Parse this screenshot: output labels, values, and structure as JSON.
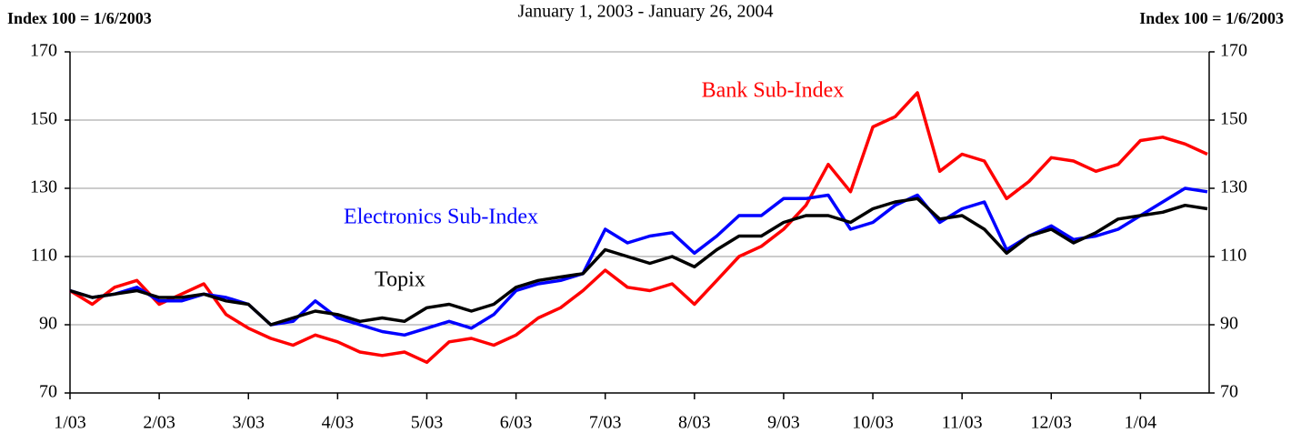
{
  "chart_data": {
    "type": "line",
    "title": "January 1, 2003 - January 26, 2004",
    "y_label": "Index 100 = 1/6/2003",
    "y2_label": "Index 100 = 1/6/2003",
    "categories": [
      "1/03",
      null,
      null,
      null,
      "2/03",
      null,
      null,
      null,
      "3/03",
      null,
      null,
      null,
      "4/03",
      null,
      null,
      null,
      "5/03",
      null,
      null,
      null,
      "6/03",
      null,
      null,
      null,
      "7/03",
      null,
      null,
      null,
      "8/03",
      null,
      null,
      null,
      "9/03",
      null,
      null,
      null,
      "10/03",
      null,
      null,
      null,
      "11/03",
      null,
      null,
      null,
      "12/03",
      null,
      null,
      null,
      "1/04",
      null,
      null,
      null
    ],
    "series": [
      {
        "name": "Bank Sub-Index",
        "color": "#ff0000",
        "values": [
          100,
          96,
          101,
          103,
          96,
          99,
          102,
          93,
          89,
          86,
          84,
          87,
          85,
          82,
          81,
          82,
          79,
          85,
          86,
          84,
          87,
          92,
          95,
          100,
          106,
          101,
          100,
          102,
          96,
          103,
          110,
          113,
          118,
          125,
          137,
          129,
          148,
          151,
          158,
          135,
          140,
          138,
          127,
          132,
          139,
          138,
          135,
          137,
          144,
          145,
          143,
          140
        ]
      },
      {
        "name": "Electronics Sub-Index",
        "color": "#0000ff",
        "values": [
          100,
          98,
          99,
          101,
          97,
          97,
          99,
          98,
          96,
          90,
          91,
          97,
          92,
          90,
          88,
          87,
          89,
          91,
          89,
          93,
          100,
          102,
          103,
          105,
          118,
          114,
          116,
          117,
          111,
          116,
          122,
          122,
          127,
          127,
          128,
          118,
          120,
          125,
          128,
          120,
          124,
          126,
          112,
          116,
          119,
          115,
          116,
          118,
          122,
          126,
          130,
          129
        ]
      },
      {
        "name": "Topix",
        "color": "#000000",
        "values": [
          100,
          98,
          99,
          100,
          98,
          98,
          99,
          97,
          96,
          90,
          92,
          94,
          93,
          91,
          92,
          91,
          95,
          96,
          94,
          96,
          101,
          103,
          104,
          105,
          112,
          110,
          108,
          110,
          107,
          112,
          116,
          116,
          120,
          122,
          122,
          120,
          124,
          126,
          127,
          121,
          122,
          118,
          111,
          116,
          118,
          114,
          117,
          121,
          122,
          123,
          125,
          124
        ]
      }
    ],
    "ylim": [
      70,
      170
    ],
    "yticks": [
      70,
      90,
      110,
      130,
      150,
      170
    ],
    "y2lim": [
      70,
      170
    ],
    "y2ticks": [
      70,
      90,
      110,
      130,
      150,
      170
    ],
    "grid": true
  }
}
